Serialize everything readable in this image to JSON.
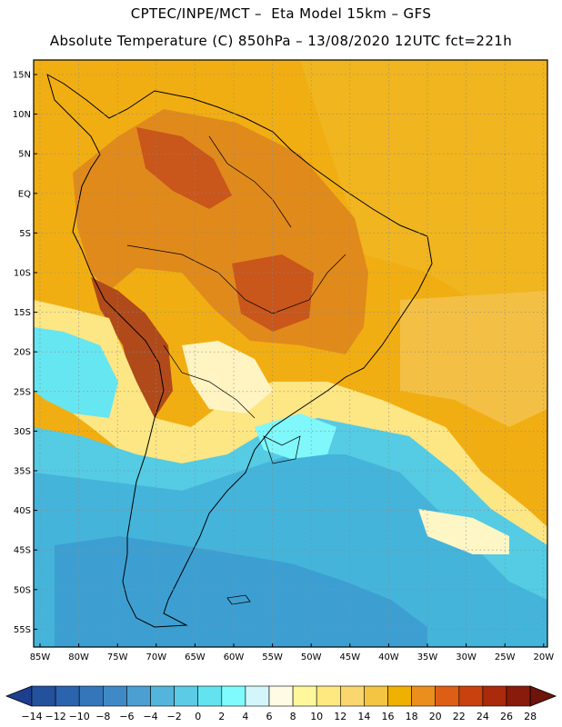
{
  "header": {
    "line1": "CPTEC/INPE/MCT –  Eta Model 15km – GFS",
    "line2": "Absolute Temperature (C) 850hPa – 13/08/2020 12UTC fct=221h"
  },
  "map": {
    "lat_labels": [
      "15N",
      "10N",
      "5N",
      "EQ",
      "5S",
      "10S",
      "15S",
      "20S",
      "25S",
      "30S",
      "35S",
      "40S",
      "45S",
      "50S",
      "55S"
    ],
    "lon_labels": [
      "85W",
      "80W",
      "75W",
      "70W",
      "65W",
      "60W",
      "55W",
      "50W",
      "45W",
      "40W",
      "35W",
      "30W",
      "25W",
      "20W"
    ]
  },
  "colorbar": {
    "labels": [
      "-14",
      "-12",
      "-10",
      "-8",
      "-6",
      "-4",
      "-2",
      "0",
      "2",
      "4",
      "6",
      "8",
      "10",
      "12",
      "14",
      "16",
      "18",
      "20",
      "22",
      "24",
      "26",
      "28"
    ],
    "colors": [
      "#1e3f8f",
      "#24519c",
      "#2b63ac",
      "#3576bb",
      "#3f8ac6",
      "#4b9fd1",
      "#53b4dc",
      "#5bcbe6",
      "#63e3ef",
      "#7ffafd",
      "#d2f6fb",
      "#fffbe4",
      "#fff79c",
      "#fde97f",
      "#fad66e",
      "#f4c443",
      "#efb000",
      "#ea8e1d",
      "#dd5e14",
      "#c8410f",
      "#a92a0c",
      "#881b0b",
      "#6e140b"
    ]
  }
}
